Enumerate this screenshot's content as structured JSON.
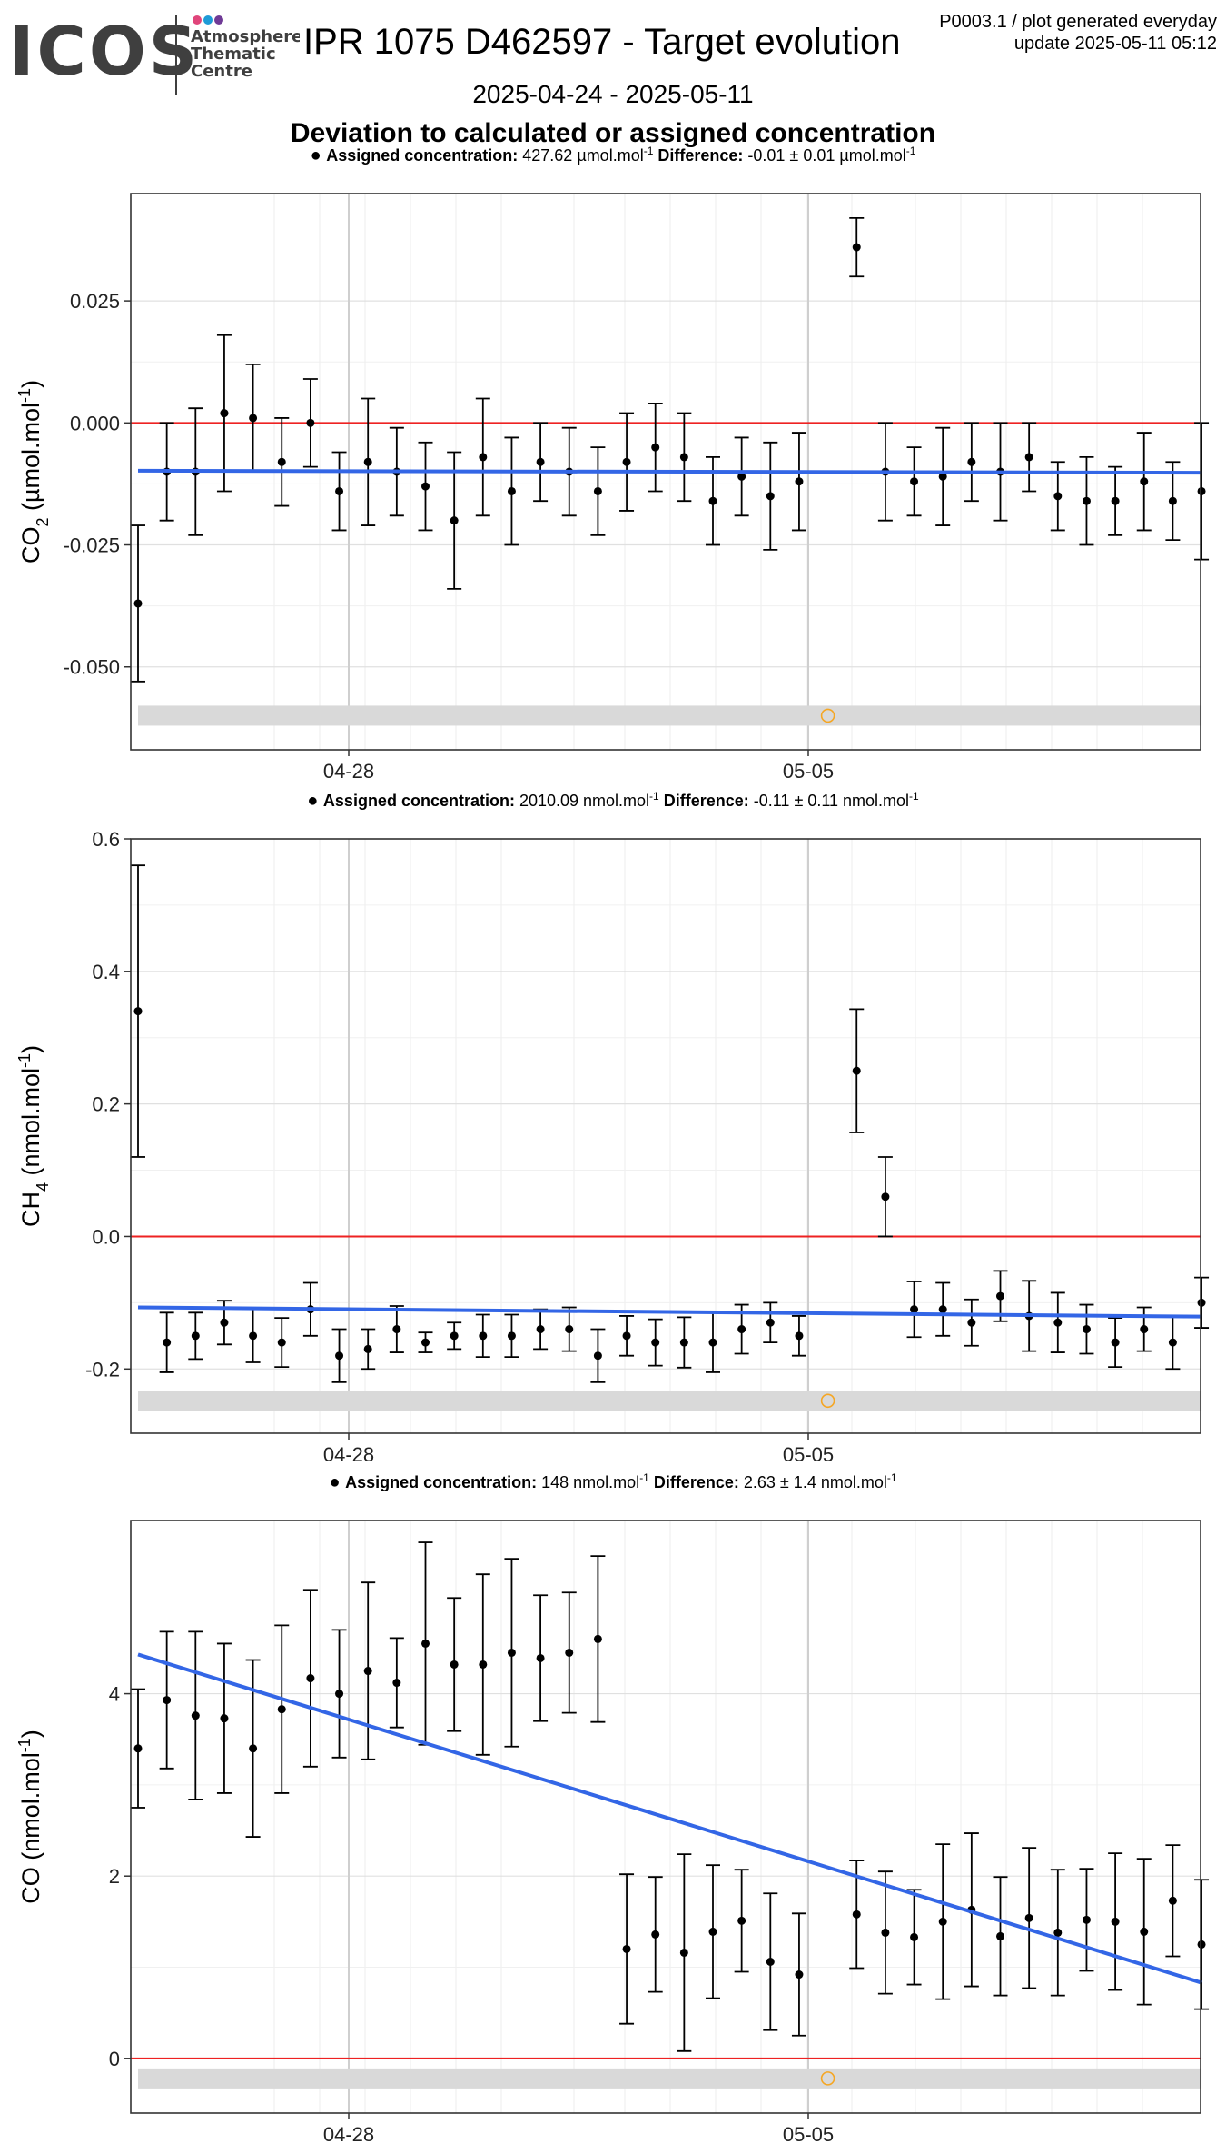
{
  "header": {
    "logo_text": "ICOS",
    "logo_sub": [
      "Atmosphere",
      "Thematic",
      "Centre"
    ],
    "title": "IPR 1075 D462597 - Target evolution",
    "date_range": "2025-04-24 - 2025-05-11",
    "subtitle": "Deviation to calculated or assigned concentration",
    "meta_line1": "P0003.1 / plot generated everyday",
    "meta_line2": "update  2025-05-11 05:12"
  },
  "colors": {
    "points": "#000000",
    "trend": "#3366e6",
    "zero_line": "#ee2222",
    "reference_band": "#d9d9d9",
    "flag_marker": "#f5a623",
    "logo_dark": "#3f3f3f",
    "logo_dots": [
      "#e0457b",
      "#1e9bd7",
      "#6f3a96"
    ]
  },
  "chart_data": [
    {
      "type": "scatter",
      "id": "co2",
      "ylabel": "CO2 (µmol.mol-1)",
      "ylabel_parts": {
        "pre": "CO",
        "sub": "2",
        "mid": " (µmol.mol",
        "sup": "-1",
        "post": ")"
      },
      "legend": {
        "assigned_label": "Assigned concentration:",
        "assigned_value": "427.62 µmol.mol",
        "assigned_sup": "-1",
        "diff_label": "Difference:",
        "diff_value": "-0.01 ± 0.01 µmol.mol",
        "diff_sup": "-1"
      },
      "x_ticks": [
        "04-28",
        "05-05"
      ],
      "y_ticks": [
        0.025,
        0.0,
        -0.025,
        -0.05
      ],
      "y_tick_labels": [
        "0.025",
        "0.000",
        "-0.025",
        "-0.050"
      ],
      "ylim": [
        -0.067,
        0.047
      ],
      "points": [
        [
          0,
          -0.037,
          0.016
        ],
        [
          1,
          -0.01,
          0.01
        ],
        [
          2,
          -0.01,
          0.013
        ],
        [
          3,
          0.002,
          0.016
        ],
        [
          4,
          0.001,
          0.011
        ],
        [
          5,
          -0.008,
          0.009
        ],
        [
          6,
          0.0,
          0.009
        ],
        [
          7,
          -0.014,
          0.008
        ],
        [
          8,
          -0.008,
          0.013
        ],
        [
          9,
          -0.01,
          0.009
        ],
        [
          10,
          -0.013,
          0.009
        ],
        [
          11,
          -0.02,
          0.014
        ],
        [
          12,
          -0.007,
          0.012
        ],
        [
          13,
          -0.014,
          0.011
        ],
        [
          14,
          -0.008,
          0.008
        ],
        [
          15,
          -0.01,
          0.009
        ],
        [
          16,
          -0.014,
          0.009
        ],
        [
          17,
          -0.008,
          0.01
        ],
        [
          18,
          -0.005,
          0.009
        ],
        [
          19,
          -0.007,
          0.009
        ],
        [
          20,
          -0.016,
          0.009
        ],
        [
          21,
          -0.011,
          0.008
        ],
        [
          22,
          -0.015,
          0.011
        ],
        [
          23,
          -0.012,
          0.01
        ],
        [
          25,
          0.036,
          0.006
        ],
        [
          26,
          -0.01,
          0.01
        ],
        [
          27,
          -0.012,
          0.007
        ],
        [
          28,
          -0.011,
          0.01
        ],
        [
          29,
          -0.008,
          0.008
        ],
        [
          30,
          -0.01,
          0.01
        ],
        [
          31,
          -0.007,
          0.007
        ],
        [
          32,
          -0.015,
          0.007
        ],
        [
          33,
          -0.016,
          0.009
        ],
        [
          34,
          -0.016,
          0.007
        ],
        [
          35,
          -0.012,
          0.01
        ],
        [
          36,
          -0.016,
          0.008
        ],
        [
          37,
          -0.014,
          0.014
        ]
      ],
      "trend": [
        [
          0,
          -0.0098
        ],
        [
          37,
          -0.0102
        ]
      ],
      "band": -0.06,
      "flag": [
        [
          24,
          -0.06
        ]
      ]
    },
    {
      "type": "scatter",
      "id": "ch4",
      "ylabel": "CH4 (nmol.mol-1)",
      "ylabel_parts": {
        "pre": "CH",
        "sub": "4",
        "mid": " (nmol.mol",
        "sup": "-1",
        "post": ")"
      },
      "legend": {
        "assigned_label": "Assigned concentration:",
        "assigned_value": "2010.09 nmol.mol",
        "assigned_sup": "-1",
        "diff_label": "Difference:",
        "diff_value": "-0.11 ± 0.11 nmol.mol",
        "diff_sup": "-1"
      },
      "x_ticks": [
        "04-28",
        "05-05"
      ],
      "y_ticks": [
        0.6,
        0.4,
        0.2,
        0.0,
        -0.2
      ],
      "y_tick_labels": [
        "0.6",
        "0.4",
        "0.2",
        "0.0",
        "-0.2"
      ],
      "ylim": [
        -0.297,
        0.6
      ],
      "points": [
        [
          0,
          0.34,
          0.22
        ],
        [
          1,
          -0.16,
          0.045
        ],
        [
          2,
          -0.15,
          0.035
        ],
        [
          3,
          -0.13,
          0.033
        ],
        [
          4,
          -0.15,
          0.04
        ],
        [
          5,
          -0.16,
          0.037
        ],
        [
          6,
          -0.11,
          0.04
        ],
        [
          7,
          -0.18,
          0.04
        ],
        [
          8,
          -0.17,
          0.03
        ],
        [
          9,
          -0.14,
          0.035
        ],
        [
          10,
          -0.16,
          0.015
        ],
        [
          11,
          -0.15,
          0.02
        ],
        [
          12,
          -0.15,
          0.032
        ],
        [
          13,
          -0.15,
          0.032
        ],
        [
          14,
          -0.14,
          0.03
        ],
        [
          15,
          -0.14,
          0.033
        ],
        [
          16,
          -0.18,
          0.04
        ],
        [
          17,
          -0.15,
          0.03
        ],
        [
          18,
          -0.16,
          0.035
        ],
        [
          19,
          -0.16,
          0.038
        ],
        [
          20,
          -0.16,
          0.045
        ],
        [
          21,
          -0.14,
          0.037
        ],
        [
          22,
          -0.13,
          0.03
        ],
        [
          23,
          -0.15,
          0.03
        ],
        [
          25,
          0.25,
          0.093
        ],
        [
          26,
          0.06,
          0.06
        ],
        [
          27,
          -0.11,
          0.042
        ],
        [
          28,
          -0.11,
          0.04
        ],
        [
          29,
          -0.13,
          0.035
        ],
        [
          30,
          -0.09,
          0.038
        ],
        [
          31,
          -0.12,
          0.053
        ],
        [
          32,
          -0.13,
          0.045
        ],
        [
          33,
          -0.14,
          0.037
        ],
        [
          34,
          -0.16,
          0.037
        ],
        [
          35,
          -0.14,
          0.033
        ],
        [
          36,
          -0.16,
          0.04
        ],
        [
          37,
          -0.1,
          0.038
        ]
      ],
      "trend": [
        [
          0,
          -0.107
        ],
        [
          37,
          -0.121
        ]
      ],
      "band": -0.248,
      "flag": [
        [
          24,
          -0.248
        ]
      ]
    },
    {
      "type": "scatter",
      "id": "co",
      "ylabel": "CO (nmol.mol-1)",
      "ylabel_parts": {
        "pre": "CO",
        "sub": "",
        "mid": " (nmol.mol",
        "sup": "-1",
        "post": ")"
      },
      "legend": {
        "assigned_label": "Assigned concentration:",
        "assigned_value": "148 nmol.mol",
        "assigned_sup": "-1",
        "diff_label": "Difference:",
        "diff_value": "2.63 ± 1.4 nmol.mol",
        "diff_sup": "-1"
      },
      "x_ticks": [
        "04-28",
        "05-05"
      ],
      "y_ticks": [
        4,
        2,
        0
      ],
      "y_tick_labels": [
        "4",
        "2",
        "0"
      ],
      "ylim": [
        -0.6,
        5.9
      ],
      "points": [
        [
          0,
          3.4,
          0.65
        ],
        [
          1,
          3.93,
          0.75
        ],
        [
          2,
          3.76,
          0.92
        ],
        [
          3,
          3.73,
          0.82
        ],
        [
          4,
          3.4,
          0.97
        ],
        [
          5,
          3.83,
          0.92
        ],
        [
          6,
          4.17,
          0.97
        ],
        [
          7,
          4.0,
          0.7
        ],
        [
          8,
          4.25,
          0.97
        ],
        [
          9,
          4.12,
          0.49
        ],
        [
          10,
          4.55,
          1.11
        ],
        [
          11,
          4.32,
          0.73
        ],
        [
          12,
          4.32,
          0.99
        ],
        [
          13,
          4.45,
          1.03
        ],
        [
          14,
          4.39,
          0.69
        ],
        [
          15,
          4.45,
          0.66
        ],
        [
          16,
          4.6,
          0.91
        ],
        [
          17,
          1.2,
          0.82
        ],
        [
          18,
          1.36,
          0.63
        ],
        [
          19,
          1.16,
          1.08
        ],
        [
          20,
          1.39,
          0.73
        ],
        [
          21,
          1.51,
          0.56
        ],
        [
          22,
          1.06,
          0.75
        ],
        [
          23,
          0.92,
          0.67
        ],
        [
          25,
          1.58,
          0.59
        ],
        [
          26,
          1.38,
          0.67
        ],
        [
          27,
          1.33,
          0.52
        ],
        [
          28,
          1.5,
          0.85
        ],
        [
          29,
          1.63,
          0.84
        ],
        [
          30,
          1.34,
          0.65
        ],
        [
          31,
          1.54,
          0.77
        ],
        [
          32,
          1.38,
          0.69
        ],
        [
          33,
          1.52,
          0.56
        ],
        [
          34,
          1.5,
          0.75
        ],
        [
          35,
          1.39,
          0.8
        ],
        [
          36,
          1.73,
          0.61
        ],
        [
          37,
          1.25,
          0.71
        ]
      ],
      "trend": [
        [
          0,
          4.43
        ],
        [
          37,
          0.83
        ]
      ],
      "band": -0.22,
      "flag": [
        [
          24,
          -0.22
        ]
      ]
    }
  ]
}
